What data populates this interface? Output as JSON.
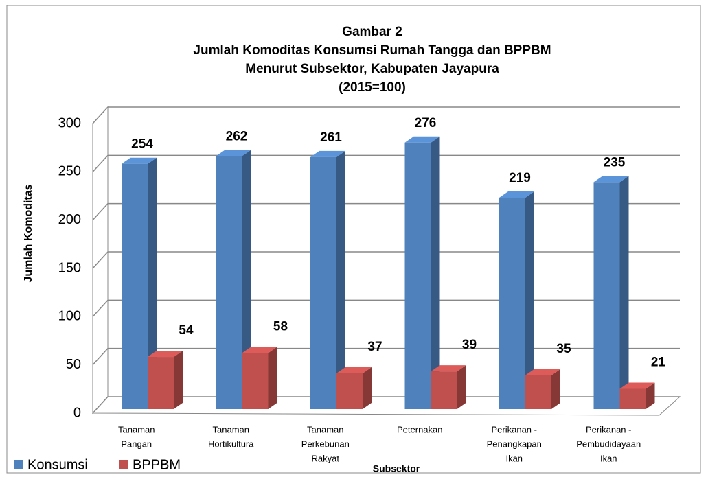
{
  "chart_data": {
    "type": "bar3d",
    "title": [
      "Gambar 2",
      "Jumlah Komoditas Konsumsi Rumah Tangga dan BPPBM",
      "Menurut Subsektor, Kabupaten Jayapura",
      "(2015=100)"
    ],
    "x_label": "Subsektor",
    "y_label": "Jumlah Komoditas",
    "categories": [
      [
        "Tanaman",
        "Pangan"
      ],
      [
        "Tanaman",
        "Hortikultura"
      ],
      [
        "Tanaman",
        "Perkebunan",
        "Rakyat"
      ],
      [
        "Peternakan"
      ],
      [
        "Perikanan -",
        "Penangkapan",
        "Ikan"
      ],
      [
        "Perikanan -",
        "Pembudidayaan",
        "Ikan"
      ]
    ],
    "series": [
      {
        "name": "Konsumsi",
        "color": "#4f81bd",
        "values": [
          254,
          262,
          261,
          276,
          219,
          235
        ]
      },
      {
        "name": "BPPBM",
        "color": "#c0504d",
        "values": [
          54,
          58,
          37,
          39,
          35,
          21
        ]
      }
    ],
    "ylim": [
      0,
      300
    ],
    "yticks": [
      0,
      50,
      100,
      150,
      200,
      250,
      300
    ],
    "grid": true,
    "legend": "bottom-left"
  }
}
